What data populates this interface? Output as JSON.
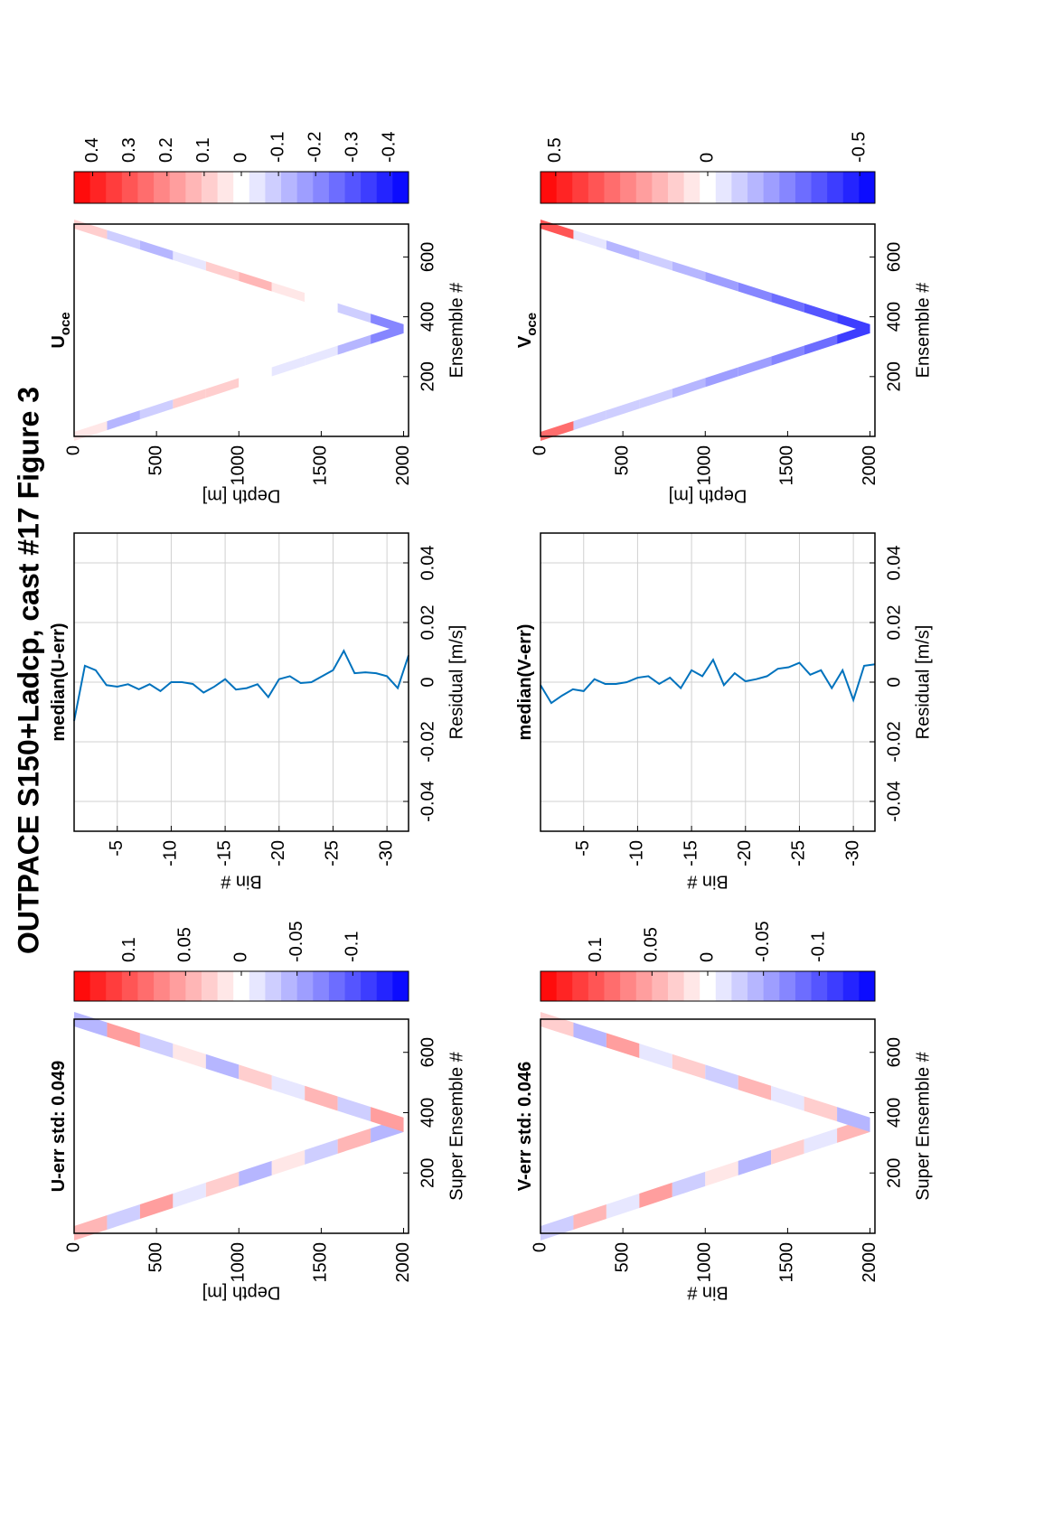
{
  "title": "OUTPACE S150+Ladcp, cast #17  Figure 3",
  "chart_data": [
    {
      "type": "heatmap",
      "title": "U-err std: 0.049",
      "xlabel": "Super Ensemble #",
      "ylabel": "Depth [m]",
      "xlim": [
        0,
        710
      ],
      "ylim": [
        0,
        2030
      ],
      "y_reversed": true,
      "xticks": [
        200,
        400,
        600
      ],
      "yticks": [
        0,
        500,
        1000,
        1500,
        2000
      ],
      "bottom_ensemble": 360,
      "end_ensemble": 710,
      "depth_edges": [
        0,
        200,
        400,
        600,
        800,
        1000,
        1200,
        1400,
        1600,
        1800,
        2000
      ],
      "downcast": [
        0.04,
        -0.03,
        0.05,
        -0.02,
        0.03,
        -0.04,
        0.02,
        -0.03,
        0.04,
        -0.05
      ],
      "upcast": [
        -0.04,
        0.05,
        -0.03,
        0.02,
        -0.04,
        0.03,
        -0.02,
        0.04,
        -0.03,
        0.05
      ],
      "colorbar": {
        "clim": [
          -0.15,
          0.15
        ],
        "ticks": [
          0.1,
          0.05,
          0,
          -0.05,
          -0.1
        ],
        "colors": [
          "#ff0000",
          "#ffffff",
          "#0000ff"
        ],
        "levels": 21
      }
    },
    {
      "type": "line",
      "title": "median(U-err)",
      "xlabel": "Residual [m/s]",
      "ylabel": "Bin #",
      "xlim": [
        -0.05,
        0.05
      ],
      "ylim": [
        -32,
        -1
      ],
      "xticks": [
        -0.04,
        -0.02,
        0,
        0.02,
        0.04
      ],
      "yticks": [
        -5,
        -10,
        -15,
        -20,
        -25,
        -30
      ],
      "grid": true,
      "y": [
        -1,
        -2,
        -3,
        -4,
        -5,
        -6,
        -7,
        -8,
        -9,
        -10,
        -11,
        -12,
        -13,
        -14,
        -15,
        -16,
        -17,
        -18,
        -19,
        -20,
        -21,
        -22,
        -23,
        -24,
        -25,
        -26,
        -27,
        -28,
        -29,
        -30,
        -31,
        -32
      ],
      "series": [
        {
          "color": "#0072bd",
          "values": [
            -0.013,
            0.0055,
            0.004,
            -0.001,
            -0.0015,
            -0.0007,
            -0.0024,
            -0.0007,
            -0.003,
            0,
            0,
            -0.0006,
            -0.0035,
            -0.0015,
            0.001,
            -0.0025,
            -0.002,
            -0.0007,
            -0.005,
            0.001,
            0.002,
            -0.0003,
            0,
            0.002,
            0.004,
            0.0105,
            0.003,
            0.0033,
            0.003,
            0.002,
            -0.002,
            0.009
          ]
        }
      ]
    },
    {
      "type": "heatmap",
      "title": "U",
      "title_subscript": "oce",
      "xlabel": "Ensemble #",
      "ylabel": "Depth [m]",
      "xlim": [
        0,
        710
      ],
      "ylim": [
        0,
        2030
      ],
      "y_reversed": true,
      "xticks": [
        200,
        400,
        600
      ],
      "yticks": [
        0,
        500,
        1000,
        1500,
        2000
      ],
      "bottom_ensemble": 360,
      "end_ensemble": 710,
      "depth_edges": [
        0,
        200,
        400,
        600,
        800,
        1000,
        1200,
        1400,
        1600,
        1800,
        2000
      ],
      "downcast": [
        0.05,
        -0.15,
        -0.08,
        0.1,
        0.08,
        0.02,
        -0.03,
        -0.05,
        -0.12,
        -0.2
      ],
      "upcast": [
        0.08,
        -0.1,
        -0.15,
        -0.05,
        0.1,
        0.12,
        0.05,
        -0.02,
        -0.08,
        -0.2
      ],
      "colorbar": {
        "clim": [
          -0.45,
          0.45
        ],
        "ticks": [
          0.4,
          0.3,
          0.2,
          0.1,
          0,
          -0.1,
          -0.2,
          -0.3,
          -0.4
        ],
        "colors": [
          "#ff0000",
          "#ffffff",
          "#0000ff"
        ],
        "levels": 21
      }
    },
    {
      "type": "heatmap",
      "title": "V-err std: 0.046",
      "xlabel": "Super Ensemble #",
      "ylabel": "Bin #",
      "xlim": [
        0,
        710
      ],
      "ylim": [
        0,
        2030
      ],
      "y_reversed": true,
      "xticks": [
        200,
        400,
        600
      ],
      "yticks": [
        0,
        500,
        1000,
        1500,
        2000
      ],
      "bottom_ensemble": 360,
      "end_ensemble": 710,
      "depth_edges": [
        0,
        200,
        400,
        600,
        800,
        1000,
        1200,
        1400,
        1600,
        1800,
        2000
      ],
      "downcast": [
        -0.03,
        0.04,
        -0.02,
        0.05,
        -0.03,
        0.02,
        -0.04,
        0.03,
        -0.02,
        0.04
      ],
      "upcast": [
        0.03,
        -0.04,
        0.05,
        -0.02,
        0.03,
        -0.03,
        0.04,
        -0.02,
        0.03,
        -0.04
      ],
      "colorbar": {
        "clim": [
          -0.15,
          0.15
        ],
        "ticks": [
          0.1,
          0.05,
          0,
          -0.05,
          -0.1
        ],
        "colors": [
          "#ff0000",
          "#ffffff",
          "#0000ff"
        ],
        "levels": 21
      }
    },
    {
      "type": "line",
      "title": "median(V-err)",
      "xlabel": "Residual [m/s]",
      "ylabel": "Bin #",
      "xlim": [
        -0.05,
        0.05
      ],
      "ylim": [
        -32,
        -1
      ],
      "xticks": [
        -0.04,
        -0.02,
        0,
        0.02,
        0.04
      ],
      "yticks": [
        -5,
        -10,
        -15,
        -20,
        -25,
        -30
      ],
      "grid": true,
      "y": [
        -1,
        -2,
        -3,
        -4,
        -5,
        -6,
        -7,
        -8,
        -9,
        -10,
        -11,
        -12,
        -13,
        -14,
        -15,
        -16,
        -17,
        -18,
        -19,
        -20,
        -21,
        -22,
        -23,
        -24,
        -25,
        -26,
        -27,
        -28,
        -29,
        -30,
        -31,
        -32
      ],
      "series": [
        {
          "color": "#0072bd",
          "values": [
            -0.001,
            -0.007,
            -0.0045,
            -0.0024,
            -0.003,
            0.001,
            -0.0006,
            -0.0006,
            0,
            0.0015,
            0.002,
            -0.0006,
            0.0015,
            -0.002,
            0.004,
            0.002,
            0.0075,
            -0.001,
            0.003,
            0.0003,
            0.001,
            0.002,
            0.0045,
            0.005,
            0.0065,
            0.0025,
            0.004,
            -0.002,
            0.004,
            -0.006,
            0.0055,
            0.006
          ]
        }
      ]
    },
    {
      "type": "heatmap",
      "title": "V",
      "title_subscript": "oce",
      "xlabel": "Ensemble #",
      "ylabel": "Depth [m]",
      "xlim": [
        0,
        710
      ],
      "ylim": [
        0,
        2030
      ],
      "y_reversed": true,
      "xticks": [
        200,
        400,
        600
      ],
      "yticks": [
        0,
        500,
        1000,
        1500,
        2000
      ],
      "bottom_ensemble": 360,
      "end_ensemble": 710,
      "depth_edges": [
        0,
        200,
        400,
        600,
        800,
        1000,
        1200,
        1400,
        1600,
        1800,
        2000
      ],
      "downcast": [
        0.3,
        -0.1,
        -0.12,
        -0.1,
        -0.15,
        -0.2,
        -0.2,
        -0.25,
        -0.3,
        -0.4
      ],
      "upcast": [
        0.35,
        -0.05,
        -0.15,
        -0.12,
        -0.15,
        -0.2,
        -0.25,
        -0.3,
        -0.35,
        -0.4
      ],
      "colorbar": {
        "clim": [
          -0.55,
          0.55
        ],
        "ticks": [
          0.5,
          0,
          -0.5
        ],
        "colors": [
          "#ff0000",
          "#ffffff",
          "#0000ff"
        ],
        "levels": 21
      }
    }
  ]
}
